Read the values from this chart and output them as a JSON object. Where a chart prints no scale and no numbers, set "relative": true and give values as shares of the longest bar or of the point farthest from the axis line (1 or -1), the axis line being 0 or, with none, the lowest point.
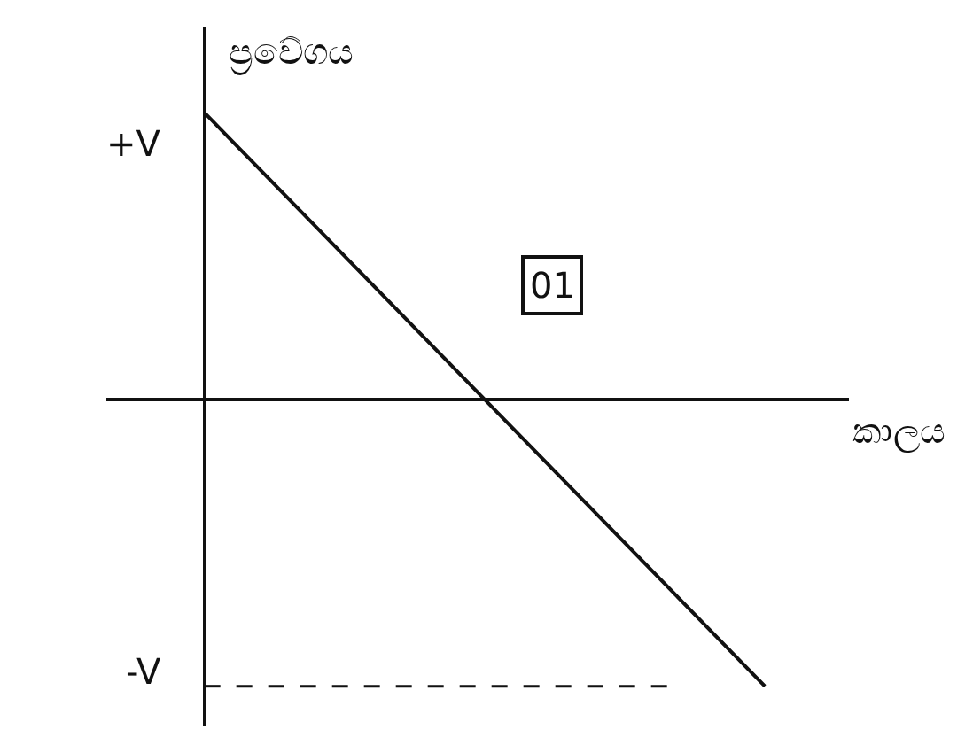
{
  "chart_data": {
    "type": "line",
    "xlabel": "කාලය",
    "ylabel": "ප්‍රවේගය",
    "relative": true,
    "categories": [
      null,
      null,
      null
    ],
    "series": [
      {
        "color": "#111111",
        "values": [
          1,
          0,
          -1
        ]
      }
    ],
    "ref_lines": [
      {
        "axis": "y",
        "value": -1,
        "label": null,
        "color": "#111111",
        "line_style": "dashed"
      }
    ],
    "annotations": [
      "+V",
      "-V",
      "01"
    ],
    "marker": "none",
    "line_style": "solid"
  }
}
